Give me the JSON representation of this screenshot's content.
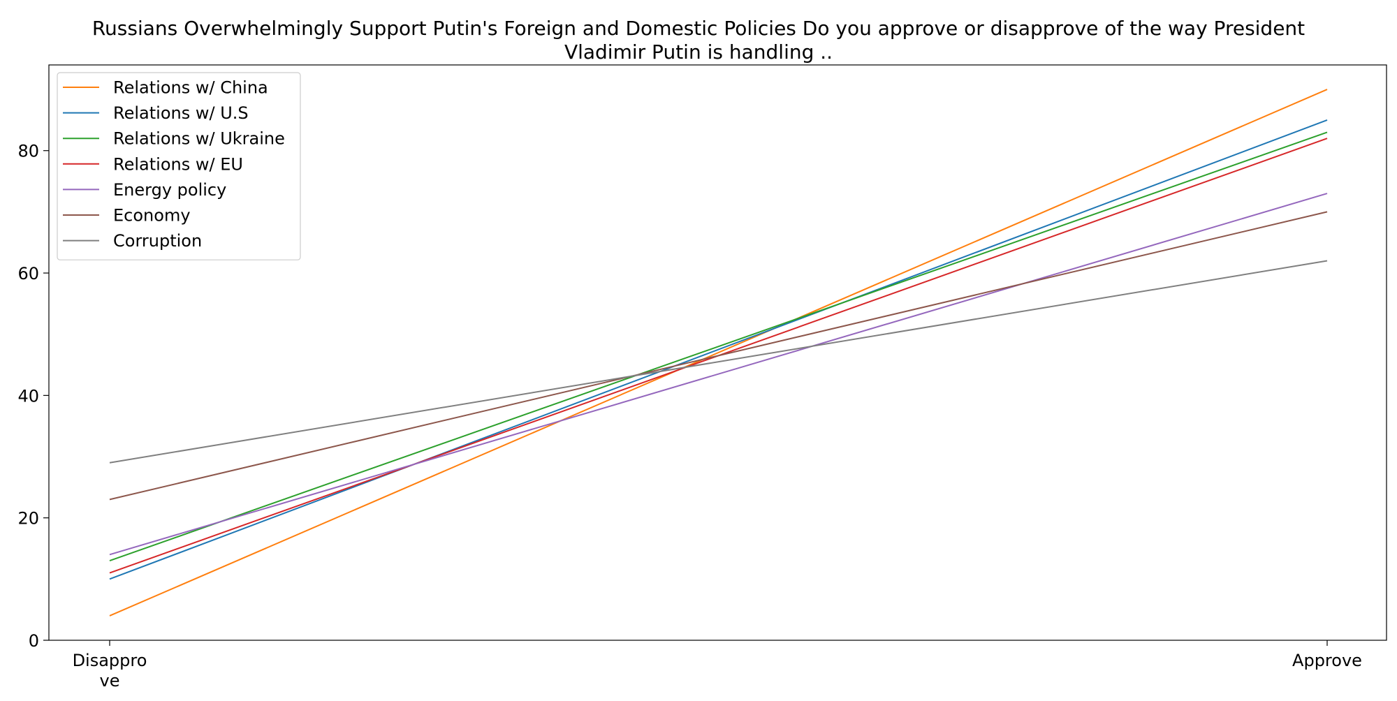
{
  "chart_data": {
    "type": "line",
    "title_lines": [
      "Russians Overwhelmingly Support Putin's Foreign and Domestic Policies Do you approve or disapprove of the way President",
      "Vladimir Putin is handling .."
    ],
    "categories": [
      "Disapprove",
      "Approve"
    ],
    "category_label_lines": [
      [
        "Disappro",
        "ve"
      ],
      [
        "Approve"
      ]
    ],
    "xlabel": "",
    "ylabel": "",
    "ylim": [
      0,
      94
    ],
    "yticks": [
      0,
      20,
      40,
      60,
      80
    ],
    "grid": false,
    "legend_position": "top-left",
    "series": [
      {
        "name": "Relations w/ China",
        "color": "#ff7f0e",
        "values": [
          4,
          90
        ]
      },
      {
        "name": "Relations w/ U.S",
        "color": "#1f77b4",
        "values": [
          10,
          85
        ]
      },
      {
        "name": "Relations w/ Ukraine",
        "color": "#2ca02c",
        "values": [
          13,
          83
        ]
      },
      {
        "name": "Relations w/ EU",
        "color": "#d62728",
        "values": [
          11,
          82
        ]
      },
      {
        "name": "Energy policy",
        "color": "#9467bd",
        "values": [
          14,
          73
        ]
      },
      {
        "name": "Economy",
        "color": "#8c564b",
        "values": [
          23,
          70
        ]
      },
      {
        "name": "Corruption",
        "color": "#7f7f7f",
        "values": [
          29,
          62
        ]
      }
    ]
  }
}
